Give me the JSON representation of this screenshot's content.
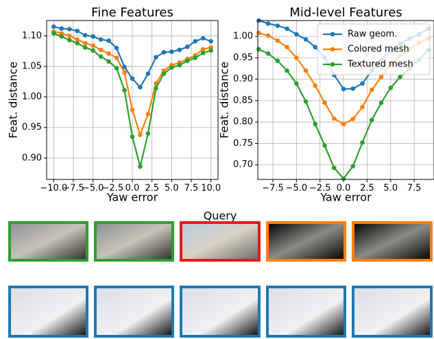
{
  "chart_data": [
    {
      "type": "line",
      "title": "Fine Features",
      "xlabel": "Yaw error",
      "ylabel": "Feat. distance",
      "x": [
        -10,
        -9,
        -8,
        -7,
        -6,
        -5,
        -4,
        -3,
        -2,
        -1,
        0,
        1,
        2,
        3,
        4,
        5,
        6,
        7,
        8,
        9,
        10
      ],
      "series": [
        {
          "name": "Raw geom.",
          "color": "#1f77b4",
          "values": [
            1.115,
            1.112,
            1.111,
            1.108,
            1.101,
            1.099,
            1.094,
            1.092,
            1.08,
            1.049,
            1.03,
            1.016,
            1.038,
            1.065,
            1.073,
            1.074,
            1.077,
            1.082,
            1.091,
            1.096,
            1.091
          ]
        },
        {
          "name": "Colored mesh",
          "color": "#ff7f0e",
          "values": [
            1.107,
            1.104,
            1.1,
            1.094,
            1.088,
            1.084,
            1.077,
            1.071,
            1.064,
            1.04,
            0.979,
            0.938,
            0.972,
            1.022,
            1.043,
            1.052,
            1.056,
            1.062,
            1.068,
            1.078,
            1.081
          ]
        },
        {
          "name": "Textured mesh",
          "color": "#2ca02c",
          "values": [
            1.104,
            1.099,
            1.093,
            1.088,
            1.081,
            1.076,
            1.066,
            1.058,
            1.047,
            1.011,
            0.935,
            0.886,
            0.94,
            1.014,
            1.038,
            1.048,
            1.052,
            1.059,
            1.064,
            1.072,
            1.076
          ]
        }
      ],
      "xlim": [
        -10.9,
        10.9
      ],
      "ylim": [
        0.865,
        1.125
      ],
      "xticks": [
        {
          "value": -10,
          "label": "−10.0"
        },
        {
          "value": -7.5,
          "label": "−7.5"
        },
        {
          "value": -5,
          "label": "−5.0"
        },
        {
          "value": -2.5,
          "label": "−2.5"
        },
        {
          "value": 0,
          "label": "0.0"
        },
        2.5,
        {
          "value": 5,
          "label": "5.0"
        },
        7.5,
        {
          "value": 10,
          "label": "10.0"
        }
      ],
      "yticks": [
        {
          "value": 0.9,
          "label": "0.90"
        },
        0.95,
        {
          "value": 1,
          "label": "1.00"
        },
        1.05,
        {
          "value": 1.1,
          "label": "1.10"
        }
      ],
      "grid": true,
      "legend": false
    },
    {
      "type": "line",
      "title": "Mid-level Features",
      "xlabel": "Yaw error",
      "ylabel": "Feat. distance",
      "x": [
        -9,
        -8,
        -7,
        -6,
        -5,
        -4,
        -3,
        -2,
        -1,
        0,
        1,
        2,
        3,
        4,
        5,
        6,
        7,
        8,
        9
      ],
      "series": [
        {
          "name": "Raw geom.",
          "color": "#1f77b4",
          "values": [
            1.037,
            1.03,
            1.025,
            1.018,
            1.005,
            0.993,
            0.975,
            0.95,
            0.91,
            0.877,
            0.878,
            0.89,
            0.92,
            0.945,
            0.967,
            0.983,
            0.995,
            1.005,
            1.018
          ]
        },
        {
          "name": "Colored mesh",
          "color": "#ff7f0e",
          "values": [
            1.008,
            1.002,
            0.99,
            0.975,
            0.95,
            0.92,
            0.885,
            0.845,
            0.808,
            0.795,
            0.807,
            0.835,
            0.875,
            0.905,
            0.935,
            0.955,
            0.97,
            0.985,
            0.995
          ]
        },
        {
          "name": "Textured mesh",
          "color": "#2ca02c",
          "values": [
            0.97,
            0.96,
            0.943,
            0.92,
            0.89,
            0.848,
            0.795,
            0.745,
            0.693,
            0.668,
            0.697,
            0.752,
            0.805,
            0.845,
            0.88,
            0.905,
            0.925,
            0.945,
            0.968
          ]
        }
      ],
      "xlim": [
        -9.1,
        9.6
      ],
      "ylim": [
        0.666,
        1.037
      ],
      "xticks": [
        {
          "value": -7.5,
          "label": "−7.5"
        },
        {
          "value": -5,
          "label": "−5.0"
        },
        {
          "value": -2.5,
          "label": "−2.5"
        },
        {
          "value": 0,
          "label": "0.0"
        },
        2.5,
        {
          "value": 5,
          "label": "5.0"
        },
        7.5
      ],
      "yticks": [
        {
          "value": 0.7,
          "label": "0.70"
        },
        0.75,
        {
          "value": 0.8,
          "label": "0.80"
        },
        0.85,
        {
          "value": 0.9,
          "label": "0.90"
        },
        0.95,
        {
          "value": 1,
          "label": "1.00"
        }
      ],
      "grid": true,
      "legend": "upper right"
    }
  ],
  "query_label": "Query"
}
